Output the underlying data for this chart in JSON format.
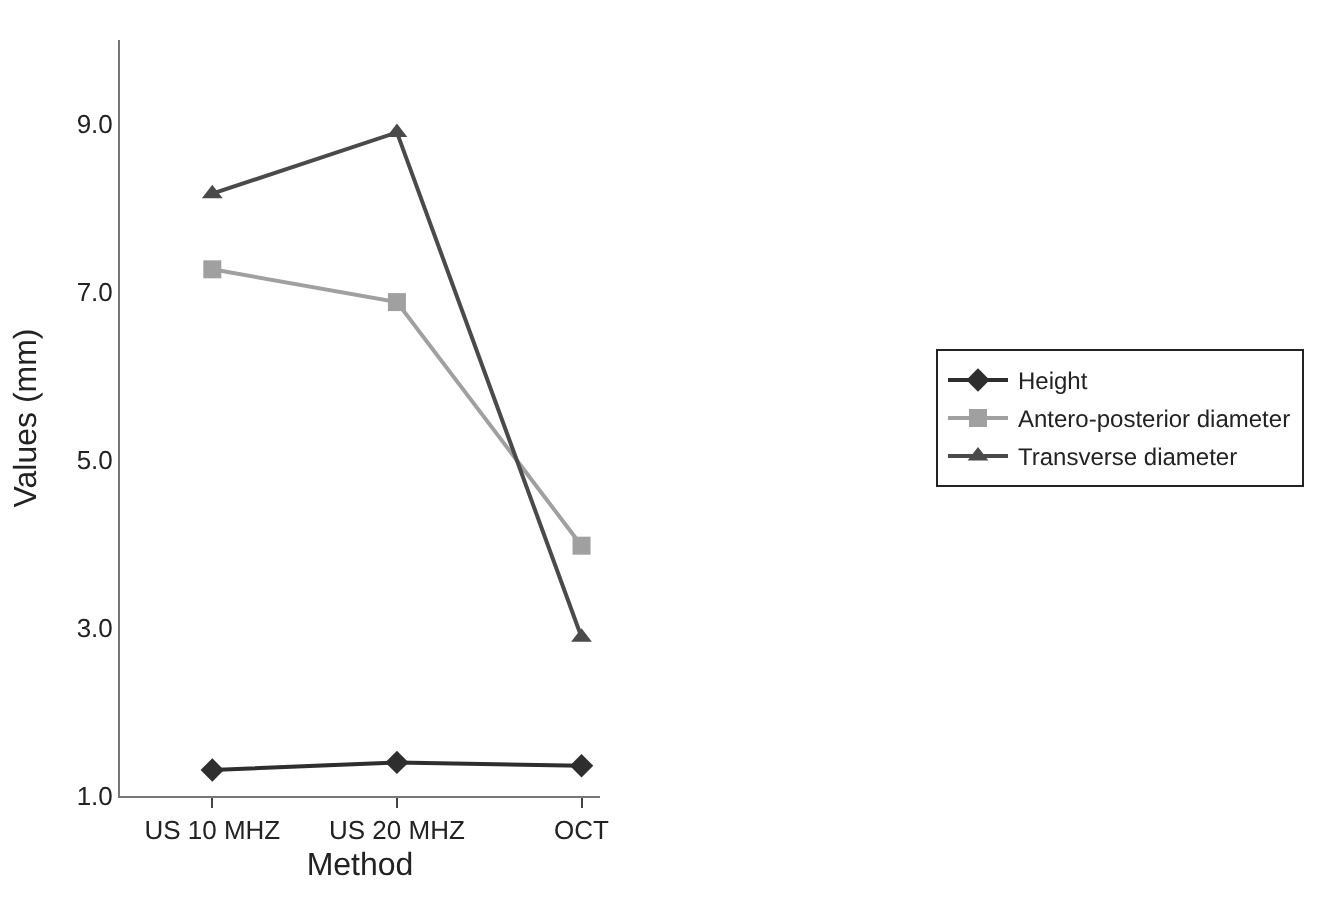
{
  "chart_data": {
    "type": "line",
    "xlabel": "Method",
    "ylabel": "Values (mm)",
    "categories": [
      "US 10 MHZ",
      "US 20 MHZ",
      "OCT"
    ],
    "series": [
      {
        "name": "Height",
        "color": "#2e2e2e",
        "marker": "diamond",
        "values": [
          1.31,
          1.4,
          1.36
        ]
      },
      {
        "name": "Antero-posterior diameter",
        "color": "#a0a0a0",
        "marker": "square",
        "values": [
          7.27,
          6.88,
          3.98
        ]
      },
      {
        "name": "Transverse diameter",
        "color": "#4a4a4a",
        "marker": "triangle",
        "values": [
          8.17,
          8.9,
          2.89
        ]
      }
    ],
    "ylim": [
      1,
      10
    ],
    "yticks": [
      {
        "value": 1,
        "label": "1.0"
      },
      {
        "value": 3,
        "label": "3.0"
      },
      {
        "value": 5,
        "label": "5.0"
      },
      {
        "value": 7,
        "label": "7.0"
      },
      {
        "value": 9,
        "label": "9.0"
      }
    ],
    "legend": "right",
    "line_style": "solid"
  }
}
